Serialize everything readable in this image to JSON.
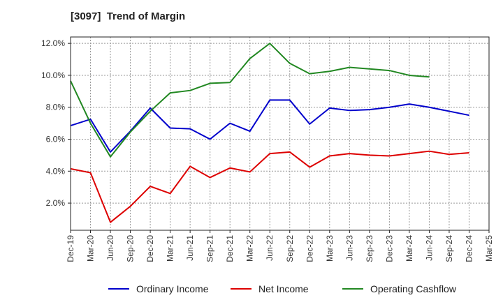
{
  "chart_data": {
    "type": "line",
    "title": "[3097]  Trend of Margin",
    "xlabel": "",
    "ylabel": "",
    "x": [
      "Dec-19",
      "Mar-20",
      "Jun-20",
      "Sep-20",
      "Dec-20",
      "Mar-21",
      "Jun-21",
      "Sep-21",
      "Dec-21",
      "Mar-22",
      "Jun-22",
      "Sep-22",
      "Dec-22",
      "Mar-23",
      "Jun-23",
      "Sep-23",
      "Dec-23",
      "Mar-24",
      "Jun-24",
      "Sep-24",
      "Dec-24",
      "Mar-25"
    ],
    "ylim": [
      0.3,
      12.4
    ],
    "yticks": [
      2.0,
      4.0,
      6.0,
      8.0,
      10.0,
      12.0
    ],
    "ytick_labels": [
      "2.0%",
      "4.0%",
      "6.0%",
      "8.0%",
      "10.0%",
      "12.0%"
    ],
    "grid": true,
    "legend_position": "bottom",
    "series": [
      {
        "name": "Ordinary Income",
        "color": "#0000cc",
        "values": [
          6.85,
          7.25,
          5.2,
          6.5,
          7.95,
          6.7,
          6.65,
          6.0,
          7.0,
          6.5,
          8.45,
          8.45,
          6.95,
          7.95,
          7.8,
          7.85,
          8.0,
          8.2,
          8.0,
          7.75,
          7.5,
          null
        ]
      },
      {
        "name": "Net Income",
        "color": "#dd0000",
        "values": [
          4.15,
          3.9,
          0.8,
          1.8,
          3.05,
          2.6,
          4.3,
          3.6,
          4.2,
          3.95,
          5.1,
          5.2,
          4.25,
          4.95,
          5.1,
          5.0,
          4.95,
          5.1,
          5.25,
          5.05,
          5.15,
          null
        ]
      },
      {
        "name": "Operating Cashflow",
        "color": "#228822",
        "values": [
          9.65,
          7.0,
          4.9,
          6.45,
          7.75,
          8.9,
          9.05,
          9.5,
          9.55,
          11.05,
          12.0,
          10.75,
          10.1,
          10.25,
          10.5,
          10.4,
          10.3,
          10.0,
          9.9,
          null,
          null,
          null
        ]
      }
    ]
  }
}
